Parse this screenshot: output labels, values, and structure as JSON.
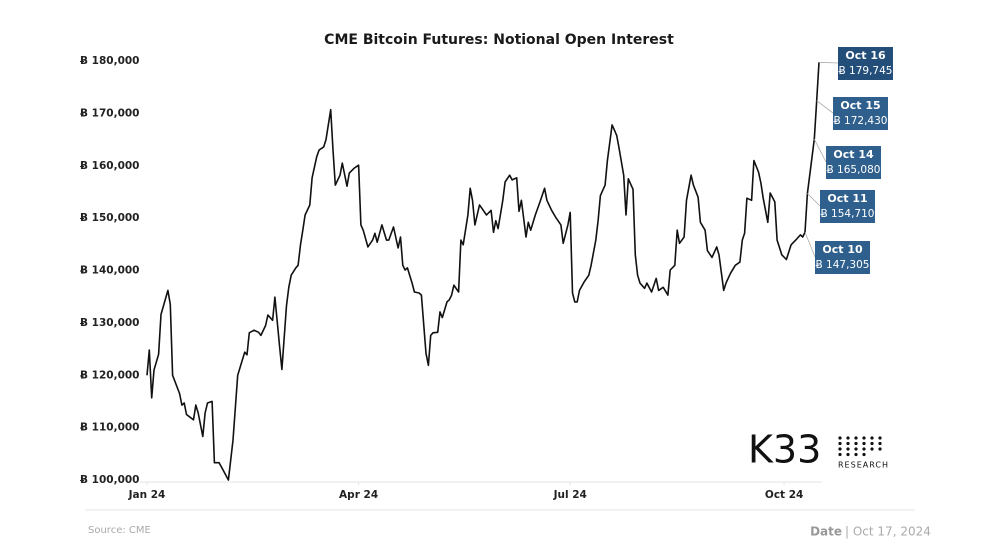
{
  "chart_data": {
    "type": "line",
    "title": "CME Bitcoin Futures: Notional Open Interest",
    "source": "Source: CME",
    "date_label": "Date",
    "date": "| Oct 17, 2024",
    "logo": {
      "name": "K33",
      "sub": "RESEARCH"
    },
    "xlim": [
      0,
      289
    ],
    "xticks": [
      {
        "value": 0,
        "label": "Jan 24"
      },
      {
        "value": 91,
        "label": "Apr 24"
      },
      {
        "value": 182,
        "label": "Jul 24"
      },
      {
        "value": 274,
        "label": "Oct 24"
      }
    ],
    "ylim": [
      100000,
      180000
    ],
    "yticks": [
      {
        "value": 100000,
        "label": "Ƀ 100,000"
      },
      {
        "value": 110000,
        "label": "Ƀ 110,000"
      },
      {
        "value": 120000,
        "label": "Ƀ 120,000"
      },
      {
        "value": 130000,
        "label": "Ƀ 130,000"
      },
      {
        "value": 140000,
        "label": "Ƀ 140,000"
      },
      {
        "value": 150000,
        "label": "Ƀ 150,000"
      },
      {
        "value": 160000,
        "label": "Ƀ 160,000"
      },
      {
        "value": 170000,
        "label": "Ƀ 170,000"
      },
      {
        "value": 180000,
        "label": "Ƀ 180,000"
      }
    ],
    "grid": false,
    "color": "#111111",
    "x": [
      0,
      1,
      2,
      3,
      5,
      6,
      9,
      10,
      11,
      14,
      15,
      16,
      17,
      20,
      21,
      22,
      24,
      25,
      26,
      28,
      29,
      30,
      31,
      32,
      35,
      37,
      39,
      41,
      42,
      43,
      44,
      46,
      48,
      49,
      51,
      52,
      54,
      55,
      57,
      58,
      60,
      61,
      62,
      64,
      65,
      66,
      67,
      68,
      70,
      71,
      73,
      74,
      76,
      77,
      79,
      80,
      81,
      83,
      84,
      86,
      87,
      89,
      91,
      92,
      93,
      95,
      97,
      98,
      99,
      101,
      103,
      104,
      106,
      108,
      109,
      110,
      111,
      112,
      114,
      115,
      117,
      118,
      120,
      121,
      122,
      123,
      125,
      126,
      127,
      129,
      130,
      131,
      132,
      134,
      135,
      136,
      138,
      139,
      140,
      141,
      143,
      144,
      146,
      148,
      149,
      150,
      151,
      153,
      154,
      156,
      157,
      159,
      160,
      161,
      163,
      164,
      165,
      167,
      169,
      171,
      172,
      174,
      176,
      178,
      179,
      181,
      182,
      183,
      184,
      185,
      186,
      188,
      190,
      191,
      193,
      194,
      195,
      197,
      198,
      200,
      201,
      202,
      203,
      205,
      206,
      207,
      209,
      210,
      211,
      212,
      214,
      215,
      217,
      219,
      220,
      222,
      224,
      225,
      227,
      228,
      229,
      231,
      232,
      234,
      235,
      237,
      238,
      240,
      241,
      243,
      245,
      246,
      248,
      249,
      251,
      253,
      255,
      256,
      257,
      258,
      260,
      261,
      263,
      264,
      265,
      267,
      268,
      270,
      271,
      273,
      275,
      277,
      279,
      281,
      282,
      283,
      284,
      287,
      288,
      289
    ],
    "values": [
      120000,
      124800,
      115700,
      121000,
      124000,
      131600,
      136200,
      133500,
      120000,
      116500,
      114300,
      114700,
      112500,
      111500,
      114300,
      112800,
      108300,
      112800,
      114700,
      115000,
      103300,
      103300,
      103300,
      102500,
      100000,
      107600,
      120000,
      122900,
      124400,
      123900,
      128100,
      128600,
      128200,
      127600,
      129500,
      131500,
      130500,
      134900,
      125700,
      121100,
      133300,
      136800,
      139100,
      140500,
      141000,
      144900,
      147700,
      150600,
      152500,
      157700,
      161700,
      163000,
      163600,
      165000,
      170700,
      163000,
      156300,
      158200,
      160500,
      156100,
      158600,
      159500,
      160100,
      148700,
      147700,
      144500,
      145800,
      147100,
      145400,
      148700,
      145800,
      145800,
      148300,
      144300,
      146400,
      141000,
      140100,
      140500,
      137600,
      135900,
      135700,
      135300,
      124200,
      121900,
      127600,
      128100,
      128200,
      132100,
      131000,
      134000,
      134400,
      135300,
      137200,
      135900,
      145800,
      144900,
      150600,
      155700,
      153400,
      148700,
      152500,
      151900,
      150600,
      151500,
      147300,
      149500,
      148000,
      153400,
      156900,
      158200,
      157300,
      157700,
      151300,
      153400,
      146400,
      149200,
      147700,
      150600,
      153100,
      155700,
      153400,
      151500,
      150000,
      148700,
      145200,
      148700,
      151100,
      135700,
      134000,
      134000,
      136200,
      137800,
      139100,
      141000,
      145800,
      149500,
      154300,
      156300,
      161000,
      167800,
      166800,
      165800,
      163400,
      158200,
      150600,
      157500,
      155500,
      143000,
      139100,
      137600,
      136600,
      137600,
      135900,
      138500,
      136200,
      136800,
      135300,
      140100,
      141000,
      147700,
      145200,
      146400,
      153400,
      158200,
      156300,
      154000,
      149200,
      147700,
      143800,
      142500,
      144500,
      143000,
      136200,
      137600,
      139500,
      141000,
      141600,
      145800,
      147100,
      153800,
      153400,
      161000,
      158800,
      156700,
      153800,
      149200,
      154800,
      153100,
      145800,
      143000,
      142100,
      144900,
      145800,
      146800,
      146400,
      147305,
      154710,
      165080,
      172430,
      179745
    ],
    "callouts": [
      {
        "date": "Oct 16",
        "x": 289,
        "value": 179745,
        "value_label": "Ƀ 179,745"
      },
      {
        "date": "Oct 15",
        "x": 288,
        "value": 172430,
        "value_label": "Ƀ 172,430"
      },
      {
        "date": "Oct 14",
        "x": 287,
        "value": 165080,
        "value_label": "Ƀ 165,080"
      },
      {
        "date": "Oct 11",
        "x": 284,
        "value": 154710,
        "value_label": "Ƀ 154,710"
      },
      {
        "date": "Oct 10",
        "x": 283,
        "value": 147305,
        "value_label": "Ƀ 147,305"
      }
    ]
  }
}
